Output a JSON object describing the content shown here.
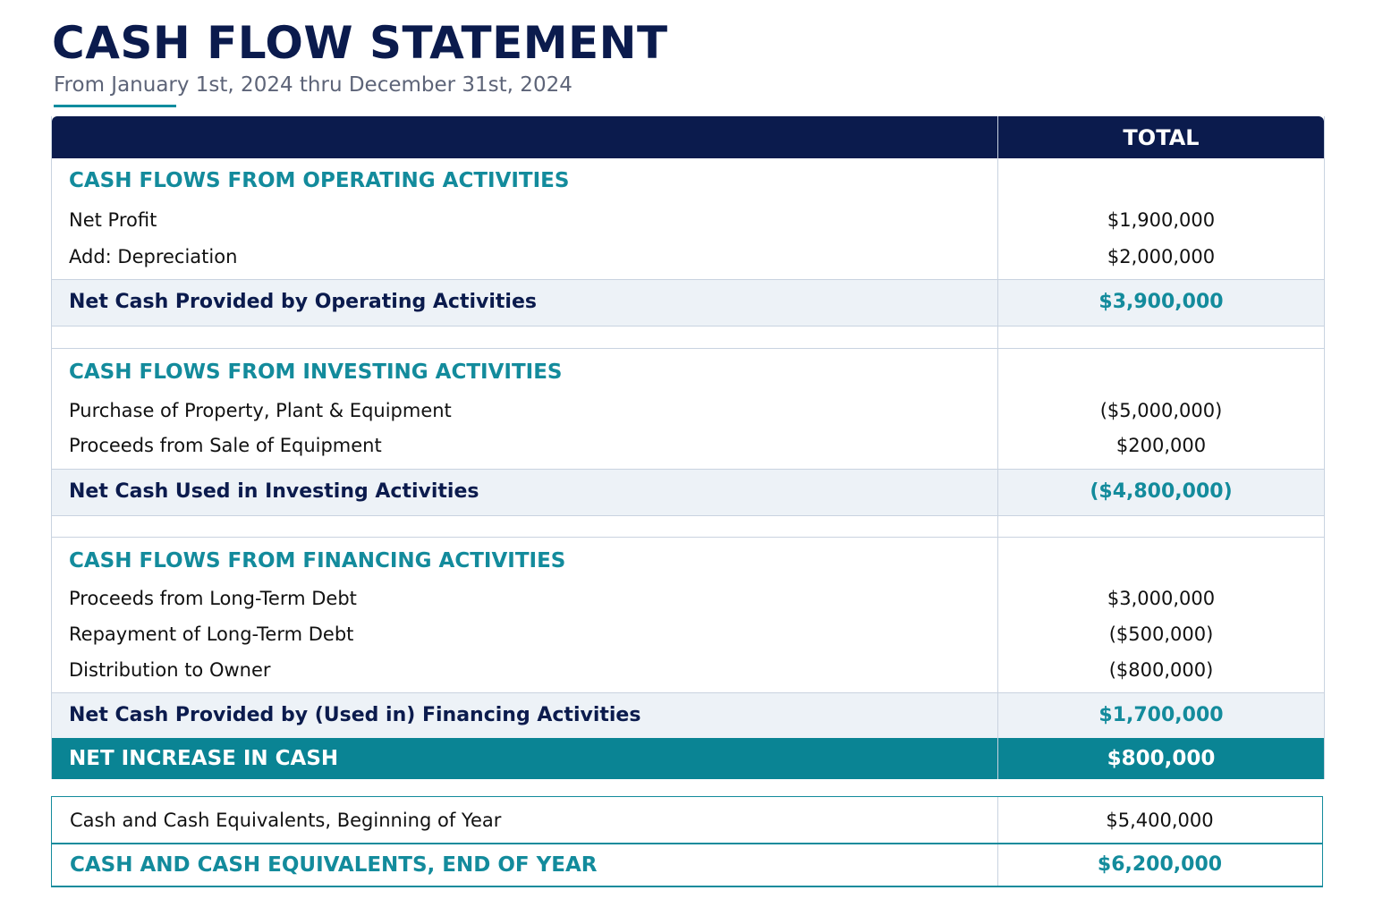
{
  "header": {
    "title": "CASH FLOW STATEMENT",
    "subtitle": "From January 1st, 2024 thru December 31st, 2024"
  },
  "table": {
    "column_header": "TOTAL",
    "operating": {
      "heading": "CASH FLOWS FROM OPERATING ACTIVITIES",
      "items": [
        {
          "label": "Net Profit",
          "value": "$1,900,000"
        },
        {
          "label": "Add: Depreciation",
          "value": "$2,000,000"
        }
      ],
      "subtotal_label": "Net Cash Provided by Operating Activities",
      "subtotal_value": "$3,900,000"
    },
    "investing": {
      "heading": "CASH FLOWS FROM INVESTING ACTIVITIES",
      "items": [
        {
          "label": "Purchase of Property, Plant & Equipment",
          "value": "($5,000,000)"
        },
        {
          "label": "Proceeds from Sale of Equipment",
          "value": "$200,000"
        }
      ],
      "subtotal_label": "Net Cash Used in Investing Activities",
      "subtotal_value": "($4,800,000)"
    },
    "financing": {
      "heading": "CASH FLOWS FROM FINANCING ACTIVITIES",
      "items": [
        {
          "label": "Proceeds from Long-Term Debt",
          "value": "$3,000,000"
        },
        {
          "label": "Repayment of Long-Term Debt",
          "value": "($500,000)"
        },
        {
          "label": "Distribution to Owner",
          "value": "($800,000)"
        }
      ],
      "subtotal_label": "Net Cash Provided by (Used in) Financing Activities",
      "subtotal_value": "$1,700,000"
    },
    "net_increase": {
      "label": "NET INCREASE IN CASH",
      "value": "$800,000"
    }
  },
  "summary": {
    "beginning": {
      "label": "Cash and Cash Equivalents, Beginning of Year",
      "value": "$5,400,000"
    },
    "end": {
      "label": "CASH AND CASH EQUIVALENTS, END OF YEAR",
      "value": "$6,200,000"
    }
  },
  "colors": {
    "navy": "#0b1b4d",
    "teal": "#0a8494",
    "subtotal_bg": "#edf2f7"
  }
}
